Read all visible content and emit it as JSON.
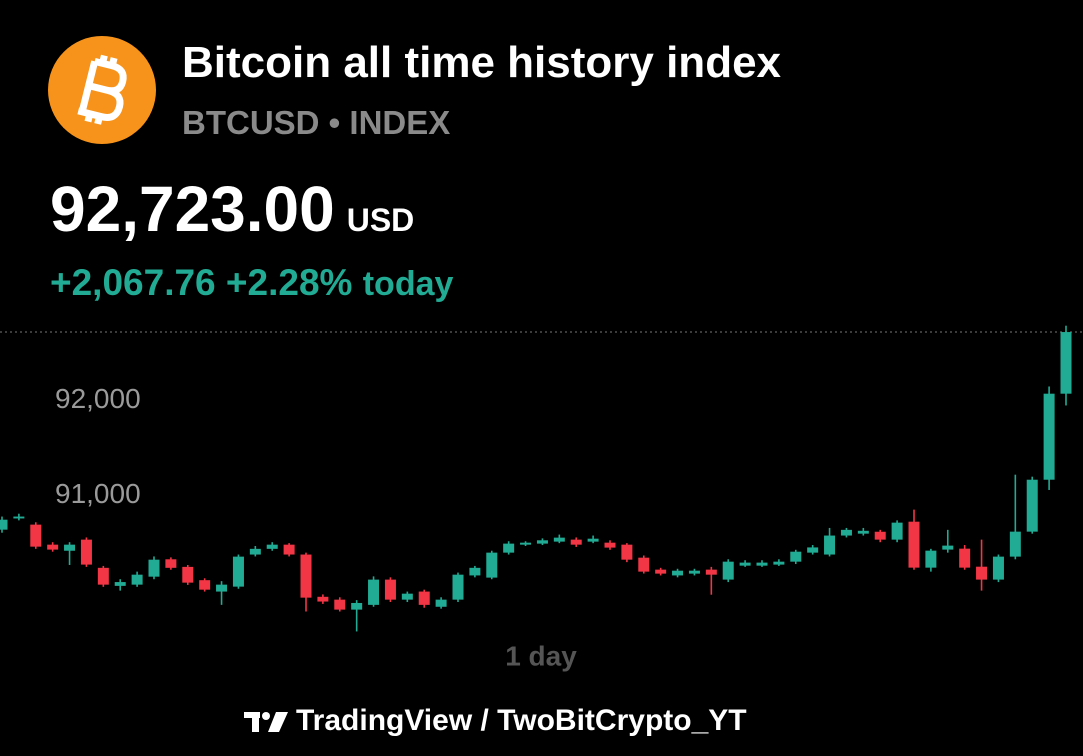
{
  "chart_data": {
    "type": "candlestick",
    "title": "Bitcoin all time history index",
    "symbol": "BTCUSD",
    "separator": "•",
    "exchange": "INDEX",
    "price": {
      "value": 92723,
      "label": "92,723.00"
    },
    "currency": "USD",
    "change": "+2,067.76",
    "change_percent": "+2.28%",
    "change_period": "today",
    "interval": "1 day",
    "attribution": "TradingView / TwoBitCrypto_YT",
    "up_color": "#22ab94",
    "down_color": "#f23645",
    "ylim": [
      89480,
      92850
    ],
    "yticks": [
      {
        "value": 91000,
        "label": "91,000"
      },
      {
        "value": 92000,
        "label": "92,000"
      }
    ],
    "open": [
      90642,
      90760,
      90695,
      90484,
      90420,
      90537,
      90240,
      90050,
      90063,
      90147,
      90330,
      90250,
      90110,
      89990,
      90042,
      90380,
      90440,
      90484,
      90380,
      89935,
      89905,
      89800,
      89850,
      90116,
      89905,
      89990,
      89830,
      89905,
      90160,
      90137,
      90400,
      90484,
      90495,
      90516,
      90537,
      90516,
      90505,
      90484,
      90347,
      90221,
      90160,
      90179,
      90221,
      90116,
      90263,
      90263,
      90274,
      90305,
      90400,
      90380,
      90580,
      90600,
      90620,
      90537,
      90726,
      90242,
      90432,
      90442,
      90252,
      90116,
      90358,
      90621,
      91168,
      92074
    ],
    "high": [
      90780,
      90810,
      90720,
      90510,
      90510,
      90560,
      90260,
      90120,
      90200,
      90360,
      90350,
      90270,
      90130,
      90100,
      90380,
      90470,
      90510,
      90500,
      90400,
      89960,
      89930,
      89900,
      90150,
      90140,
      89990,
      90010,
      89930,
      90190,
      90260,
      90420,
      90520,
      90520,
      90550,
      90590,
      90560,
      90580,
      90530,
      90500,
      90370,
      90240,
      90230,
      90230,
      90250,
      90330,
      90320,
      90320,
      90330,
      90430,
      90480,
      90660,
      90660,
      90660,
      90640,
      90740,
      90853,
      90440,
      90640,
      90480,
      90537,
      90380,
      91221,
      91200,
      92150,
      92790
    ],
    "low": [
      90610,
      90740,
      90440,
      90410,
      90270,
      90250,
      90040,
      90000,
      90040,
      90120,
      90220,
      90060,
      89990,
      89850,
      90020,
      90360,
      90420,
      90360,
      89780,
      89860,
      89780,
      89570,
      89830,
      89880,
      89880,
      89820,
      89810,
      89880,
      90140,
      90120,
      90380,
      90470,
      90480,
      90500,
      90460,
      90500,
      90430,
      90300,
      90180,
      90160,
      90140,
      90160,
      89957,
      90090,
      90250,
      90250,
      90260,
      90280,
      90380,
      90360,
      90560,
      90580,
      90510,
      90510,
      90220,
      90200,
      90400,
      90220,
      90000,
      90090,
      90330,
      90600,
      91060,
      91950
    ],
    "close": [
      90747,
      90780,
      90463,
      90432,
      90484,
      90274,
      90063,
      90090,
      90168,
      90326,
      90240,
      90084,
      90010,
      90063,
      90358,
      90440,
      90484,
      90380,
      89926,
      89885,
      89800,
      89870,
      90116,
      89905,
      89968,
      89850,
      89905,
      90168,
      90240,
      90400,
      90495,
      90505,
      90530,
      90558,
      90484,
      90547,
      90453,
      90326,
      90200,
      90179,
      90210,
      90210,
      90168,
      90305,
      90295,
      90295,
      90305,
      90410,
      90455,
      90580,
      90640,
      90630,
      90537,
      90716,
      90242,
      90421,
      90474,
      90242,
      90116,
      90358,
      90621,
      91168,
      92074,
      92723
    ]
  }
}
